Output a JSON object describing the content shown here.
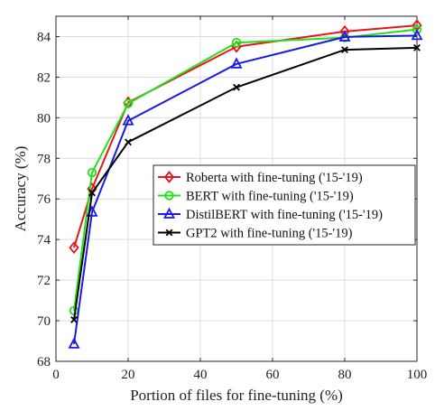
{
  "chart_data": {
    "type": "line",
    "title": "",
    "xlabel": "Portion of files for fine-tuning (%)",
    "ylabel": "Accuracy (%)",
    "xlim": [
      0,
      100
    ],
    "ylim": [
      68,
      85
    ],
    "xticks": [
      0,
      20,
      40,
      60,
      80,
      100
    ],
    "yticks": [
      68,
      70,
      72,
      74,
      76,
      78,
      80,
      82,
      84
    ],
    "grid": true,
    "legend_position": "center-right",
    "x": [
      5,
      10,
      20,
      50,
      80,
      100
    ],
    "series": [
      {
        "name": "Roberta with fine-tuning ('15-'19)",
        "color": "#e8161b",
        "marker": "diamond",
        "values": [
          73.6,
          76.5,
          80.75,
          83.5,
          84.25,
          84.55
        ]
      },
      {
        "name": "BERT with fine-tuning ('15-'19)",
        "color": "#22e01a",
        "marker": "circle",
        "values": [
          70.5,
          77.3,
          80.7,
          83.7,
          83.95,
          84.35
        ]
      },
      {
        "name": "DistilBERT with fine-tuning ('15-'19)",
        "color": "#1a1ae6",
        "marker": "triangle",
        "values": [
          68.85,
          75.35,
          79.85,
          82.65,
          83.98,
          84.05
        ]
      },
      {
        "name": "GPT2  with fine-tuning ('15-'19)",
        "color": "#000000",
        "marker": "x",
        "values": [
          70.05,
          76.3,
          78.8,
          81.5,
          83.35,
          83.45
        ]
      }
    ]
  }
}
